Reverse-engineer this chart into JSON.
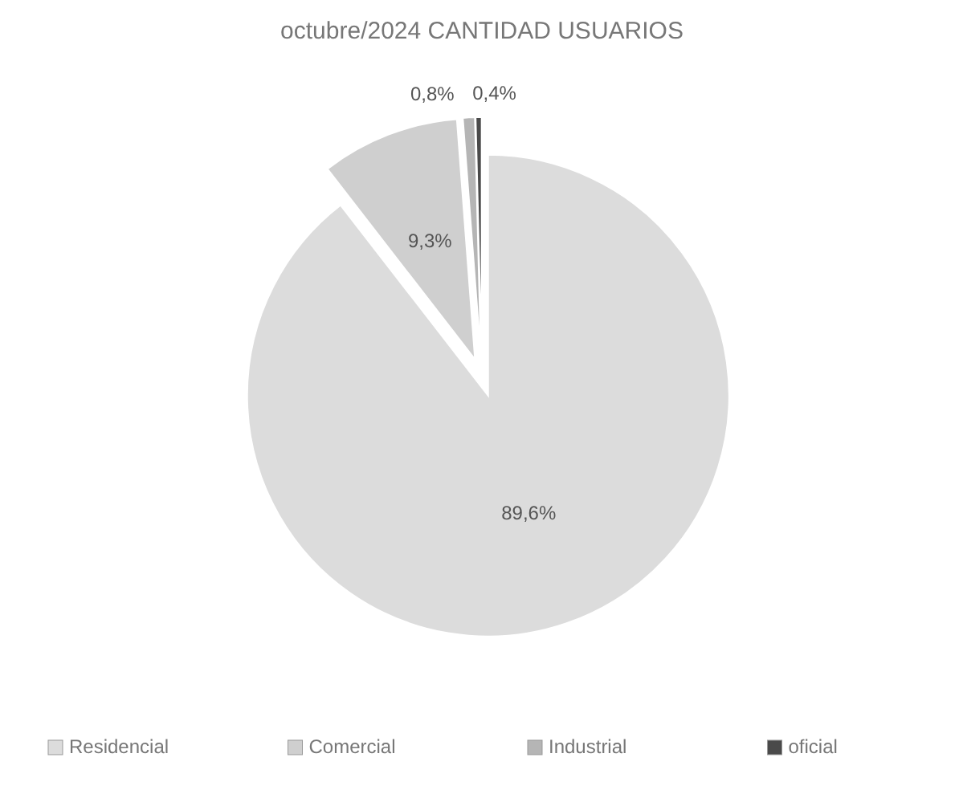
{
  "chart_data": {
    "type": "pie",
    "title": "octubre/2024 CANTIDAD USUARIOS",
    "categories": [
      "Residencial",
      "Comercial",
      "Industrial",
      "oficial"
    ],
    "values": [
      89.6,
      9.3,
      0.8,
      0.4
    ],
    "value_labels": [
      "89,6%",
      "9,3%",
      "0,8%",
      "0,4%"
    ],
    "colors": [
      "#dcdcdc",
      "#cfcfcf",
      "#b5b5b5",
      "#4a4a4a"
    ],
    "legend": "bottom"
  }
}
